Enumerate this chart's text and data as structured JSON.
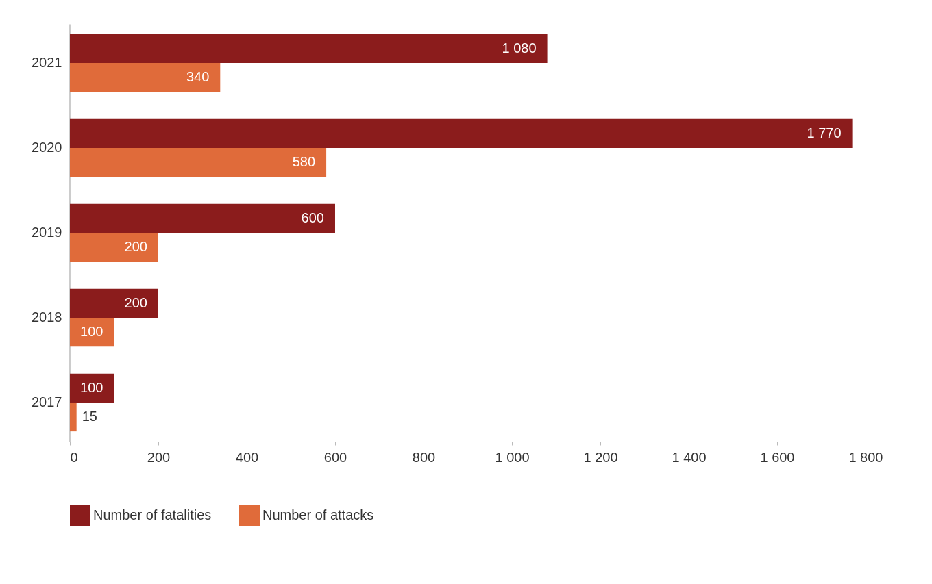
{
  "chart_data": {
    "type": "bar",
    "orientation": "horizontal",
    "categories": [
      "2021",
      "2020",
      "2019",
      "2018",
      "2017"
    ],
    "series": [
      {
        "name": "Number of fatalities",
        "color": "#8b1c1c",
        "values": [
          1080,
          1770,
          600,
          200,
          100
        ],
        "value_labels": [
          "1 080",
          "1 770",
          "600",
          "200",
          "100"
        ]
      },
      {
        "name": "Number of attacks",
        "color": "#e06b3a",
        "values": [
          340,
          580,
          200,
          100,
          15
        ],
        "value_labels": [
          "340",
          "580",
          "200",
          "100",
          "15"
        ]
      }
    ],
    "xlim": [
      0,
      1845
    ],
    "xticks": [
      0,
      200,
      400,
      600,
      800,
      {
        "value": 1000,
        "label": "1 000"
      },
      {
        "value": 1200,
        "label": "1 200"
      },
      {
        "value": 1400,
        "label": "1 400"
      },
      {
        "value": 1600,
        "label": "1 600"
      },
      {
        "value": 1800,
        "label": "1 800"
      }
    ],
    "grid": false,
    "legend": "bottom"
  }
}
